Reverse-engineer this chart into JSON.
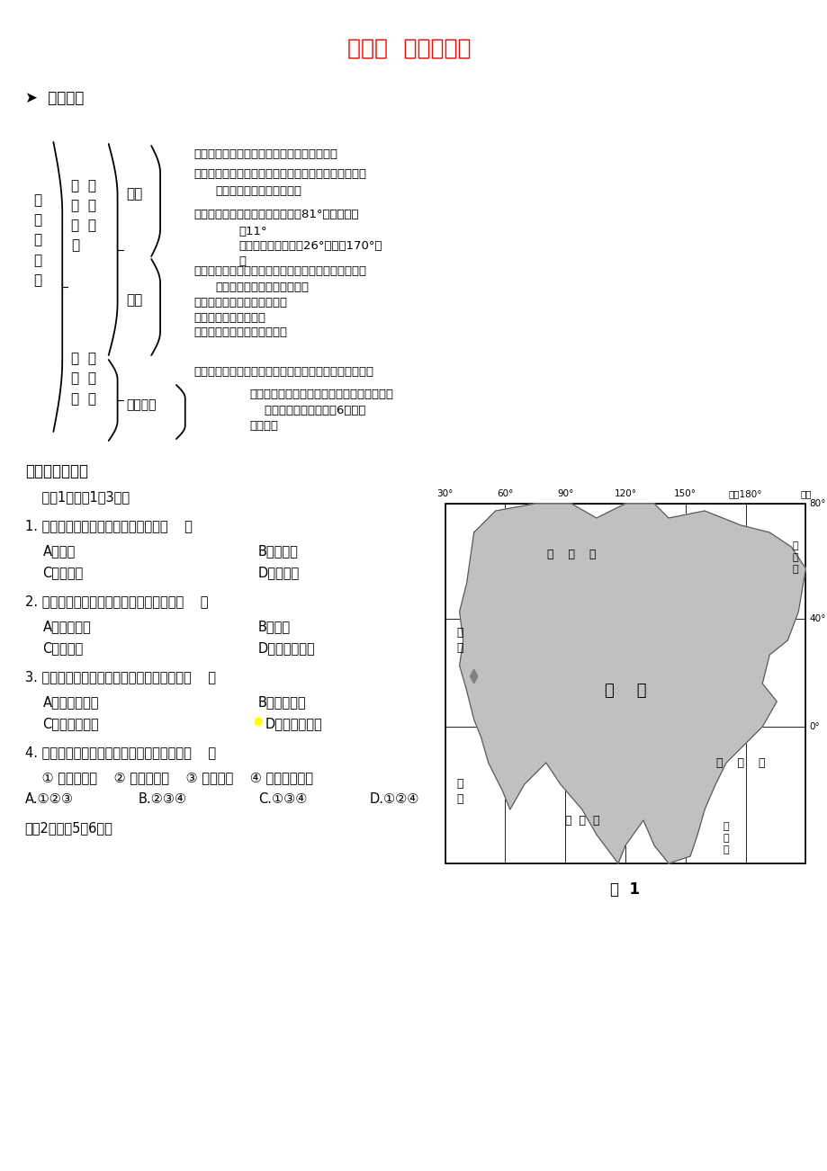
{
  "title": "第一节  位置和范围",
  "title_color": "#FF0000",
  "bg_color": "#FFFFFF",
  "section_header": "➤  知识网络",
  "root_text": "位\n置\n和\n范\n围",
  "l1_text_1": "雄  踞\n东  方\n的  大\n洲",
  "l1_text_2": "世  界\n第  一\n大  洲",
  "l2_pos": "位置",
  "l2_ran": "范围",
  "l2_asia": "亚洲分区",
  "pos_lines": [
    "半球位置：绝大部分地区位于北半球和东半球",
    "海陆位置：占据亚欧大陆的大部，北、东、南三面环绕",
    "        着北冰洋、太平洋和印度洋",
    "",
    "经纬度位置：纬度：北部约达北纬81°，南部达南",
    "        纬11°",
    "        经度：位置约在东经26°至西经170°之",
    "        间"
  ],
  "ran_lines": [
    "西北以乌拉尔山脉、乌拉尔河、里海、大高加索山脉、",
    "    黑海和土耳其海峡与欧洲为界",
    "西南以苏伊士运河与非洲为界",
    "东南隔海与大洋洲相望",
    "东北以白令海峡与北美洲为界"
  ],
  "world_first_line": "是世界上面积最大、跨纬度最广、东西距离最长的大洲。",
  "asia_div_lines": [
    "分区：按照地理方位，分为东亚、东南亚、南",
    "    亚、西亚、中亚和北亚6个地区",
    "地区差异"
  ],
  "qa_title": "一、单项选择题",
  "intro": "    读图1，完成1～3题。",
  "q1": "1. 地球五带中亚洲所跨面积最大的是（    ）",
  "q1_opts": [
    "A．热带",
    "B．北寒带",
    "C．北温带",
    "D．南温带"
  ],
  "q2": "2. 下列重要经、纬线中，不穿过亚洲的是（    ）",
  "q2_opts": [
    "A．北回归线",
    "B．赤道",
    "C．北极圈",
    "D．本初子午线"
  ],
  "q3": "3. 下列地方，位于亚洲、欧洲分界线上的是（    ）",
  "q3_opts": [
    "A．苏伊士运河",
    "B．白令海峡",
    "C．巴拿马运河",
    "D．土耳其海峡"
  ],
  "q4": "4. 下列能正确描述亚洲是世界第一大洲的是（    ）",
  "q4_sub": "    ① 跨纬度最广    ② 跨经度最广    ③ 面积最大    ④ 东西距离最长",
  "q4_opts": [
    "A.①②③",
    "B.②③④",
    "C.①③④",
    "D.①②④"
  ],
  "last_line": "读图2，完成5～6题。",
  "map_top_labels": [
    "30°",
    "60°",
    "90°",
    "120°",
    "150°",
    "东经180°",
    "西经"
  ],
  "map_right_labels": [
    "80°",
    "40°",
    "0°"
  ],
  "map_inner_labels": {
    "arctic_ocean": "北    冰    洋",
    "asia": "亚    洲",
    "pacific": "太    平    洋",
    "indian": "印  度  洋",
    "europe": "欧\n洲",
    "africa": "非\n洲",
    "north_am": "北\n美\n洲",
    "oceania": "大\n洋\n洲"
  },
  "fig1_label": "图  1"
}
